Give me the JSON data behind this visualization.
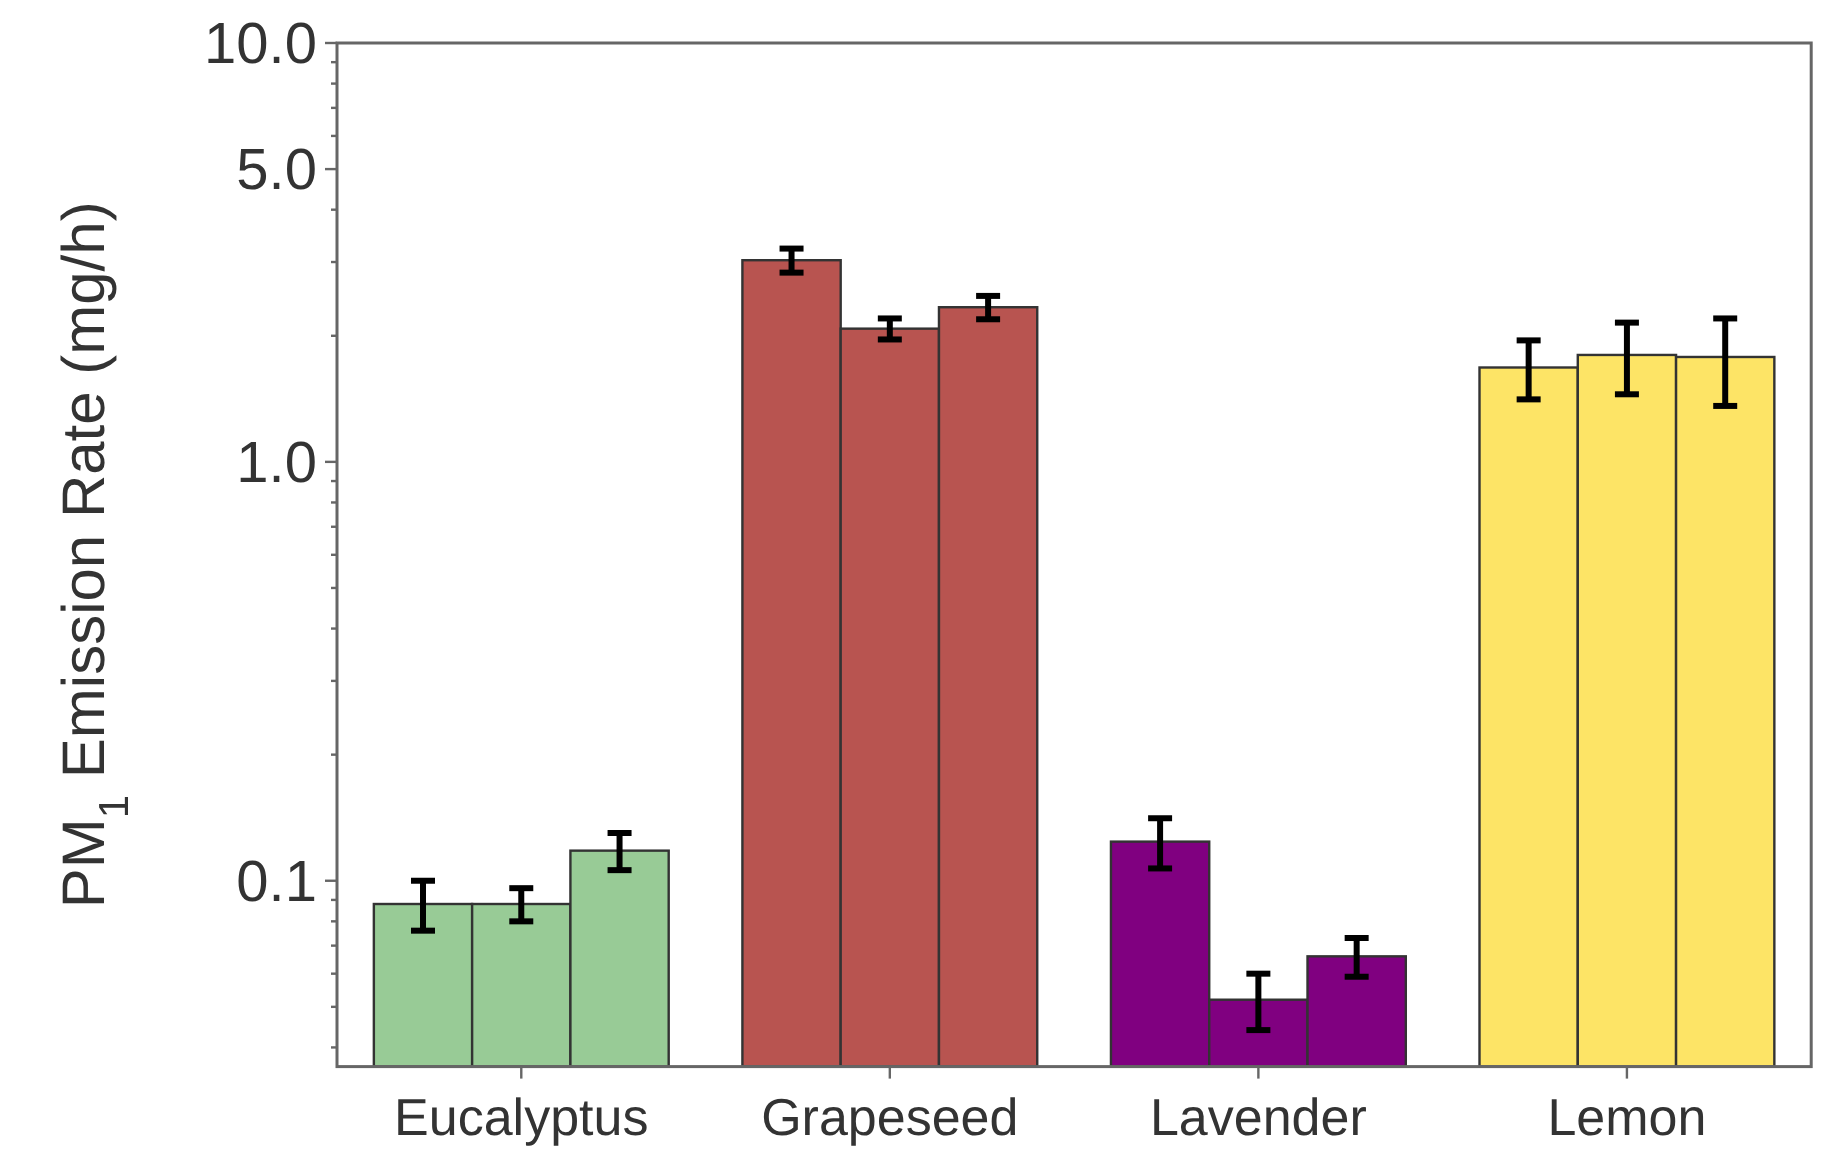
{
  "chart_data": {
    "type": "bar",
    "ylabel": "PM$_{1}$ Emission Rate (mg/h)",
    "categories": [
      "Eucalyptus",
      "Grapeseed",
      "Lavender",
      "Lemon"
    ],
    "series": [
      {
        "colors": [
          "#98cb96",
          "#b85450",
          "#800080",
          "#fde466"
        ],
        "values": [
          0.088,
          3.03,
          0.124,
          1.68
        ],
        "errors": [
          0.012,
          0.2,
          0.017,
          0.27
        ]
      },
      {
        "colors": [
          "#98cb96",
          "#b85450",
          "#800080",
          "#fde466"
        ],
        "values": [
          0.088,
          2.08,
          0.052,
          1.8
        ],
        "errors": [
          0.008,
          0.12,
          0.008,
          0.35
        ]
      },
      {
        "colors": [
          "#98cb96",
          "#b85450",
          "#800080",
          "#fde466"
        ],
        "values": [
          0.118,
          2.34,
          0.066,
          1.78
        ],
        "errors": [
          0.012,
          0.15,
          0.007,
          0.42
        ]
      }
    ],
    "log": "y",
    "ylim": [
      0.036,
      10
    ],
    "yticks": [
      {
        "value": 0.04,
        "label": null
      },
      {
        "value": 0.05,
        "label": null
      },
      {
        "value": 0.06,
        "label": null
      },
      {
        "value": 0.07,
        "label": null
      },
      {
        "value": 0.08,
        "label": null
      },
      {
        "value": 0.09,
        "label": null
      },
      0.1,
      {
        "value": 0.2,
        "label": null
      },
      {
        "value": 0.3,
        "label": null
      },
      {
        "value": 0.4,
        "label": null
      },
      {
        "value": 0.5,
        "label": null
      },
      {
        "value": 0.6,
        "label": null
      },
      {
        "value": 0.7,
        "label": null
      },
      {
        "value": 0.8,
        "label": null
      },
      {
        "value": 0.9,
        "label": null
      },
      {
        "value": 1,
        "label": "1.0"
      },
      {
        "value": 2,
        "label": null
      },
      {
        "value": 3,
        "label": null
      },
      {
        "value": 4,
        "label": null
      },
      {
        "value": 5,
        "label": "5.0"
      },
      {
        "value": 6,
        "label": null
      },
      {
        "value": 7,
        "label": null
      },
      {
        "value": 8,
        "label": null
      },
      {
        "value": 9,
        "label": null
      },
      {
        "value": 10,
        "label": "10.0"
      }
    ],
    "grid": false
  }
}
